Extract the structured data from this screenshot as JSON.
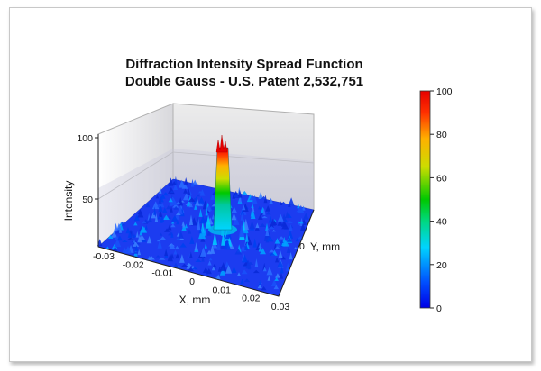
{
  "chart_data": {
    "type": "surface3d",
    "title": [
      "Diffraction Intensity  Spread Function",
      "Double Gauss - U.S. Patent 2,532,751"
    ],
    "xlabel": "X, mm",
    "ylabel": "Y, mm",
    "zlabel": "Intensity",
    "x_ticks": [
      "-0.03",
      "-0.02",
      "-0.01",
      "0",
      "0.01",
      "0.02",
      "0.03"
    ],
    "y_ticks": [
      "0"
    ],
    "z_ticks": [
      "50",
      "100"
    ],
    "xlim": [
      -0.03,
      0.03
    ],
    "ylim": [
      -0.03,
      0.03
    ],
    "zlim": [
      0,
      100
    ],
    "peak": {
      "x": 0,
      "y": 0,
      "intensity": 100
    },
    "background_intensity_max": 12,
    "colorbar": {
      "ticks": [
        "0",
        "20",
        "40",
        "60",
        "80",
        "100"
      ],
      "range": [
        0,
        100
      ],
      "colors": [
        "#0000e6",
        "#0050ff",
        "#00d4ff",
        "#00d880",
        "#00c800",
        "#ccdd00",
        "#ffb000",
        "#ff3000",
        "#e60000"
      ]
    }
  }
}
